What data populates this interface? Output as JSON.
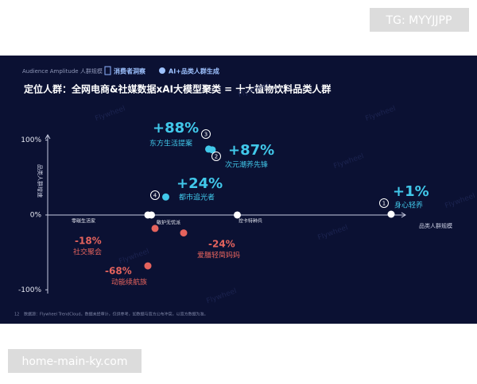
{
  "corner_badge": "TG: MYYJJPP",
  "site_badge": "home-main-ky.com",
  "header": {
    "brand": "Audience Amplitude 人群规模",
    "tags": [
      "消费者洞察",
      "AI+品类人群生成"
    ]
  },
  "watermark": "Flywheel",
  "footer": {
    "page": "12",
    "note": "数据源：Flywheel TrendCloud。数据未经审计，仅供参考，如数据与官方公布冲突，以官方数据为准。"
  },
  "chart_data": {
    "type": "scatter",
    "title": "定位人群：全网电商&社媒数据xAI大模型聚类 = 十大植物饮料品类人群",
    "x_label": "品类人群规模",
    "y_label": "品类人群增速",
    "categories": [
      "东方生活提案",
      "次元潮养先锋",
      "都市追光者",
      "身心轻养",
      "社交聚会",
      "爱膳轻简妈妈",
      "动能续航族",
      "零碳生活家",
      "敏护无忧派",
      "控卡特种兵"
    ],
    "markers": [
      "3",
      "2",
      "4",
      "1",
      null,
      null,
      null,
      null,
      null,
      null
    ],
    "x": [
      45,
      46,
      33,
      96,
      30,
      38,
      28,
      28,
      29,
      53
    ],
    "values": [
      88,
      87,
      24,
      1,
      -18,
      -24,
      -68,
      0,
      0,
      0
    ],
    "value_labels": [
      "+88%",
      "+87%",
      "+24%",
      "+1%",
      "-18%",
      "-24%",
      "-68%",
      null,
      null,
      null
    ],
    "colors": [
      "#41c8ea",
      "#41c8ea",
      "#41c8ea",
      "#ffffff",
      "#e5635d",
      "#e5635d",
      "#e5635d",
      "#ffffff",
      "#ffffff",
      "#ffffff"
    ],
    "xlim": [
      0,
      100
    ],
    "ylim": [
      -105,
      107
    ],
    "yticks": [
      {
        "value": 100,
        "label": "100%"
      },
      {
        "value": 0,
        "label": "0%"
      },
      {
        "value": -100,
        "label": "-100%"
      }
    ]
  }
}
